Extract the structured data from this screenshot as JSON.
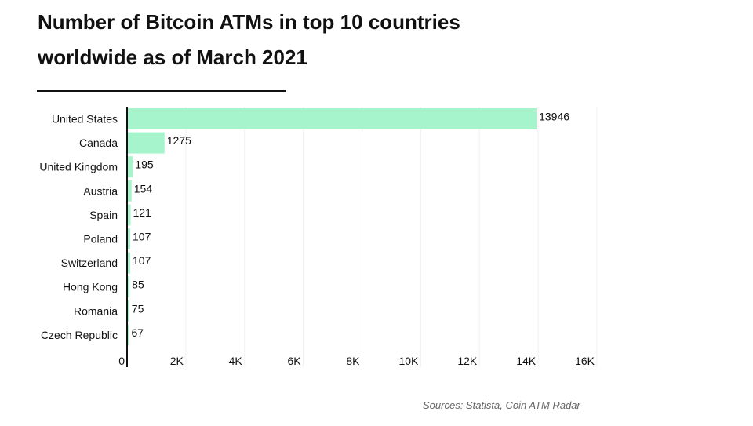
{
  "chart_data": {
    "type": "bar",
    "orientation": "horizontal",
    "title": "Number of Bitcoin ATMs in top 10 countries worldwide as of March 2021",
    "title_lines": [
      "Number of Bitcoin ATMs in top 10 countries",
      "worldwide as of March 2021"
    ],
    "categories": [
      "United States",
      "Canada",
      "United Kingdom",
      "Austria",
      "Spain",
      "Poland",
      "Switzerland",
      "Hong Kong",
      "Romania",
      "Czech Republic"
    ],
    "values": [
      13946,
      1275,
      195,
      154,
      121,
      107,
      107,
      85,
      75,
      67
    ],
    "xlim": [
      0,
      16000
    ],
    "xticks": [
      0,
      2000,
      4000,
      6000,
      8000,
      10000,
      12000,
      14000,
      16000
    ],
    "xtick_labels": [
      "0",
      "2K",
      "4K",
      "6K",
      "8K",
      "10K",
      "12K",
      "14K",
      "16K"
    ],
    "xlabel": "",
    "ylabel": "",
    "grid": true,
    "bar_color": "#a6f4cb",
    "source": "Sources: Statista, Coin ATM Radar"
  }
}
